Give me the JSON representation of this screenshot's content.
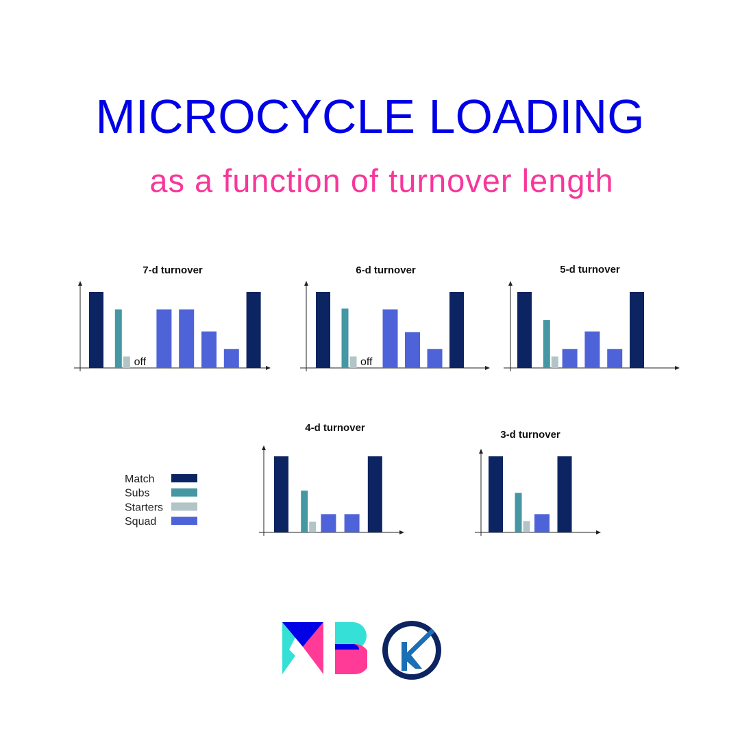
{
  "header": {
    "title": "MICROCYCLE LOADING",
    "subtitle": "as a function of turnover length"
  },
  "colors": {
    "title": "#0000e6",
    "subtitle": "#f7379a",
    "Match": "#0c2461",
    "Subs": "#4597a3",
    "Starters": "#b3c4c6",
    "Squad": "#4f63d9"
  },
  "legend": [
    {
      "label": "Match",
      "key": "Match"
    },
    {
      "label": "Subs",
      "key": "Subs"
    },
    {
      "label": "Starters",
      "key": "Starters"
    },
    {
      "label": "Squad",
      "key": "Squad"
    }
  ],
  "off_label": "off",
  "chart_data": [
    {
      "type": "bar",
      "title": "7-d turnover",
      "days": [
        {
          "kind": "match",
          "Match": 100
        },
        {
          "kind": "post",
          "Subs": 77,
          "Starters": 15
        },
        {
          "kind": "off"
        },
        {
          "kind": "squad",
          "Squad": 77
        },
        {
          "kind": "squad",
          "Squad": 77
        },
        {
          "kind": "squad",
          "Squad": 48
        },
        {
          "kind": "squad",
          "Squad": 25
        },
        {
          "kind": "match",
          "Match": 100
        }
      ]
    },
    {
      "type": "bar",
      "title": "6-d turnover",
      "days": [
        {
          "kind": "match",
          "Match": 100
        },
        {
          "kind": "post",
          "Subs": 78,
          "Starters": 15
        },
        {
          "kind": "off"
        },
        {
          "kind": "squad",
          "Squad": 77
        },
        {
          "kind": "squad",
          "Squad": 47
        },
        {
          "kind": "squad",
          "Squad": 25
        },
        {
          "kind": "match",
          "Match": 100
        }
      ]
    },
    {
      "type": "bar",
      "title": "5-d turnover",
      "days": [
        {
          "kind": "match",
          "Match": 100
        },
        {
          "kind": "post",
          "Subs": 63,
          "Starters": 15
        },
        {
          "kind": "squad",
          "Squad": 25
        },
        {
          "kind": "squad",
          "Squad": 48
        },
        {
          "kind": "squad",
          "Squad": 25
        },
        {
          "kind": "match",
          "Match": 100
        }
      ]
    },
    {
      "type": "bar",
      "title": "4-d turnover",
      "days": [
        {
          "kind": "match",
          "Match": 100
        },
        {
          "kind": "post",
          "Subs": 55,
          "Starters": 14
        },
        {
          "kind": "squad",
          "Squad": 24
        },
        {
          "kind": "squad",
          "Squad": 24
        },
        {
          "kind": "match",
          "Match": 100
        }
      ]
    },
    {
      "type": "bar",
      "title": "3-d turnover",
      "days": [
        {
          "kind": "match",
          "Match": 100
        },
        {
          "kind": "post",
          "Subs": 52,
          "Starters": 15
        },
        {
          "kind": "squad",
          "Squad": 24
        },
        {
          "kind": "match",
          "Match": 100
        }
      ]
    }
  ]
}
